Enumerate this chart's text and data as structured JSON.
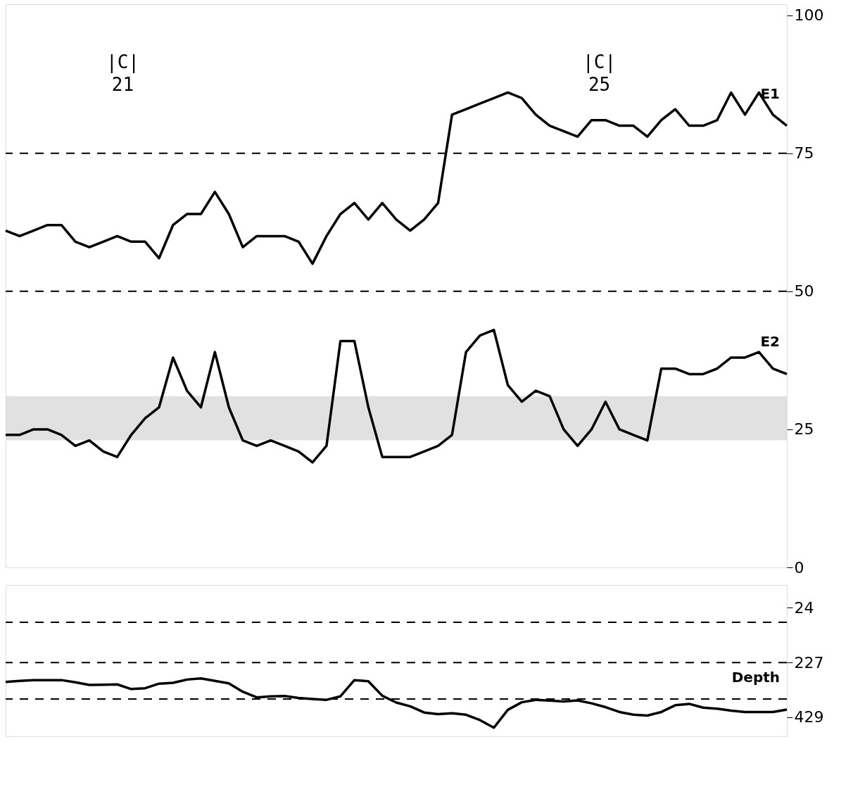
{
  "chart_data": [
    {
      "type": "line",
      "categories": [
        null,
        null,
        null,
        null,
        null,
        null,
        null,
        null,
        null,
        null,
        null,
        null,
        null,
        null,
        null,
        null,
        null,
        null,
        null,
        null,
        null,
        null,
        null,
        null,
        null,
        null,
        null,
        null,
        null,
        null,
        null,
        null,
        null,
        null,
        null,
        null,
        null,
        null,
        null,
        null,
        null,
        null,
        null,
        null,
        null,
        null,
        null,
        null,
        null,
        null,
        null,
        null,
        null,
        null,
        null,
        null,
        null
      ],
      "series": [
        {
          "name": "E1",
          "color": "#000000",
          "values": [
            61,
            60,
            61,
            62,
            62,
            59,
            58,
            59,
            60,
            59,
            59,
            56,
            62,
            64,
            64,
            68,
            64,
            58,
            60,
            60,
            60,
            59,
            55,
            60,
            64,
            66,
            63,
            66,
            63,
            61,
            63,
            66,
            82,
            83,
            84,
            85,
            86,
            85,
            82,
            80,
            79,
            78,
            81,
            81,
            80,
            80,
            78,
            81,
            83,
            80,
            80,
            81,
            86,
            82,
            86,
            82,
            80
          ]
        },
        {
          "name": "E2",
          "color": "#000000",
          "values": [
            24,
            24,
            25,
            25,
            24,
            22,
            23,
            21,
            20,
            24,
            27,
            29,
            38,
            32,
            29,
            39,
            29,
            23,
            22,
            23,
            22,
            21,
            19,
            22,
            41,
            41,
            29,
            20,
            20,
            20,
            21,
            22,
            24,
            39,
            42,
            43,
            33,
            30,
            32,
            31,
            25,
            22,
            25,
            30,
            25,
            24,
            23,
            36,
            36,
            35,
            35,
            36,
            38,
            38,
            39,
            36,
            35
          ]
        }
      ],
      "ylim": [
        0,
        102
      ],
      "yticks": [
        0,
        25,
        50,
        75,
        100
      ],
      "ref_lines": [
        {
          "axis": "y",
          "value": 75,
          "line_style": "dashed"
        },
        {
          "axis": "y",
          "value": 50,
          "line_style": "dashed"
        }
      ],
      "bands": [
        {
          "axis": "y",
          "from": 23,
          "to": 31,
          "color": "#d9d9d9"
        }
      ],
      "annotations": [
        "|C|\n21",
        "|C|\n25"
      ],
      "grid": false,
      "legend": false,
      "line_style": "solid",
      "marker": "none"
    },
    {
      "type": "line",
      "categories": [
        null,
        null,
        null,
        null,
        null,
        null,
        null,
        null,
        null,
        null,
        null,
        null,
        null,
        null,
        null,
        null,
        null,
        null,
        null,
        null,
        null,
        null,
        null,
        null,
        null,
        null,
        null,
        null,
        null,
        null,
        null,
        null,
        null,
        null,
        null,
        null,
        null,
        null,
        null,
        null,
        null,
        null,
        null,
        null,
        null,
        null,
        null,
        null,
        null,
        null,
        null,
        null,
        null,
        null,
        null,
        null,
        null
      ],
      "series": [
        {
          "name": "Depth",
          "color": "#000000",
          "values": [
            299,
            295,
            292,
            292,
            292,
            300,
            310,
            309,
            308,
            325,
            322,
            305,
            302,
            290,
            286,
            295,
            304,
            335,
            356,
            352,
            351,
            358,
            362,
            365,
            352,
            292,
            296,
            350,
            375,
            389,
            412,
            418,
            415,
            420,
            440,
            468,
            402,
            374,
            365,
            368,
            371,
            367,
            378,
            392,
            410,
            420,
            423,
            410,
            385,
            380,
            394,
            398,
            405,
            410,
            410,
            410,
            401
          ]
        }
      ],
      "ylim": [
        500,
        -60
      ],
      "yticks": [
        24,
        227,
        429
      ],
      "ref_lines": [
        {
          "axis": "y",
          "value": 78,
          "line_style": "dashed"
        },
        {
          "axis": "y",
          "value": 227,
          "line_style": "dashed"
        },
        {
          "axis": "y",
          "value": 362,
          "line_style": "dashed"
        }
      ],
      "grid": false,
      "legend": false,
      "line_style": "solid",
      "marker": "none"
    }
  ]
}
